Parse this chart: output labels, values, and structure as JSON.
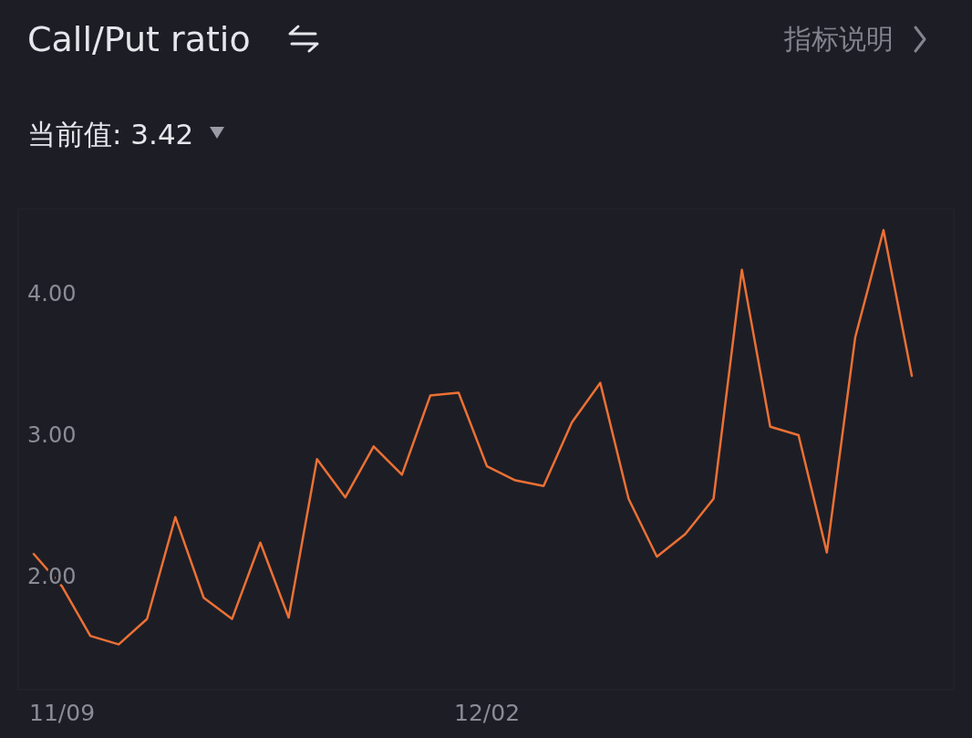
{
  "chart_data": {
    "type": "line",
    "title": "Call/Put ratio",
    "subtitle": "当前值: 3.42",
    "annotations": [
      "指标说明"
    ],
    "categories": [
      null,
      "11/09",
      null,
      null,
      null,
      null,
      null,
      null,
      null,
      null,
      null,
      null,
      null,
      null,
      null,
      null,
      "12/02",
      null,
      null,
      null,
      null,
      null,
      null,
      null,
      null,
      null,
      null,
      null,
      null,
      null,
      null,
      null
    ],
    "series": [
      {
        "color": "#ec7035",
        "values": [
          2.16,
          1.93,
          1.58,
          1.52,
          1.7,
          2.42,
          1.85,
          1.7,
          2.24,
          1.71,
          2.83,
          2.56,
          2.92,
          2.72,
          3.28,
          3.3,
          2.78,
          2.68,
          2.64,
          3.09,
          3.37,
          2.55,
          2.14,
          2.3,
          2.55,
          4.17,
          3.06,
          3.0,
          2.17,
          3.69,
          4.45,
          3.42
        ]
      }
    ],
    "ylim": [
      1.2,
      4.6
    ],
    "yticks": [
      {
        "value": 2,
        "label": "2.00"
      },
      {
        "value": 3,
        "label": "3.00"
      },
      {
        "value": 4,
        "label": "4.00"
      }
    ],
    "grid": false,
    "marker": "none",
    "line_style": "solid"
  }
}
